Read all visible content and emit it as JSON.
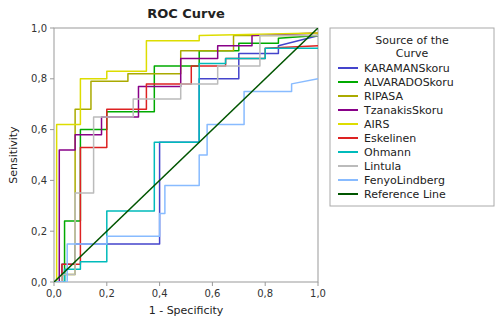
{
  "chart_data": {
    "type": "line",
    "title": "ROC Curve",
    "xlabel": "1 - Specificity",
    "ylabel": "Sensitivity",
    "legend_title": "Source of the\nCurve",
    "legend": "right",
    "grid": false,
    "xlim": [
      0.0,
      1.0
    ],
    "ylim": [
      0.0,
      1.0
    ],
    "xticks": [
      {
        "value": 0.0,
        "label": "0,0"
      },
      {
        "value": 0.2,
        "label": "0,2"
      },
      {
        "value": 0.4,
        "label": "0,4"
      },
      {
        "value": 0.6,
        "label": "0,6"
      },
      {
        "value": 0.8,
        "label": "0,8"
      },
      {
        "value": 1.0,
        "label": "1,0"
      }
    ],
    "yticks": [
      {
        "value": 0.0,
        "label": "0,0"
      },
      {
        "value": 0.2,
        "label": "0,2"
      },
      {
        "value": 0.4,
        "label": "0,4"
      },
      {
        "value": 0.6,
        "label": "0,6"
      },
      {
        "value": 0.8,
        "label": "0,8"
      },
      {
        "value": 1.0,
        "label": "1,0"
      }
    ],
    "series": [
      {
        "name": "KARAMANSkoru",
        "color": "#4444cc",
        "x": [
          0.0,
          0.03,
          0.03,
          0.08,
          0.08,
          0.4,
          0.4,
          0.55,
          0.55,
          0.7,
          0.7,
          0.85,
          0.85,
          1.0
        ],
        "values": [
          0.0,
          0.0,
          0.07,
          0.07,
          0.15,
          0.15,
          0.55,
          0.55,
          0.8,
          0.8,
          0.9,
          0.9,
          0.93,
          0.97
        ]
      },
      {
        "name": "ALVARADOSkoru",
        "color": "#00aa00",
        "x": [
          0.0,
          0.04,
          0.04,
          0.1,
          0.1,
          0.2,
          0.2,
          0.38,
          0.38,
          0.55,
          0.55,
          0.7,
          0.7,
          0.85,
          0.85,
          1.0
        ],
        "values": [
          0.0,
          0.0,
          0.24,
          0.24,
          0.6,
          0.6,
          0.67,
          0.67,
          0.85,
          0.85,
          0.91,
          0.91,
          0.94,
          0.94,
          0.96,
          0.97
        ]
      },
      {
        "name": "RIPASA",
        "color": "#aaaa00",
        "x": [
          0.0,
          0.03,
          0.03,
          0.08,
          0.08,
          0.14,
          0.14,
          0.28,
          0.28,
          0.48,
          0.48,
          0.68,
          0.68,
          1.0
        ],
        "values": [
          0.0,
          0.0,
          0.03,
          0.03,
          0.68,
          0.68,
          0.79,
          0.79,
          0.82,
          0.82,
          0.91,
          0.91,
          0.97,
          0.97
        ]
      },
      {
        "name": "TzanakisSkoru",
        "color": "#880088",
        "x": [
          0.0,
          0.02,
          0.02,
          0.08,
          0.08,
          0.18,
          0.18,
          0.32,
          0.32,
          0.48,
          0.48,
          0.62,
          0.62,
          0.75,
          0.75,
          1.0
        ],
        "values": [
          0.0,
          0.0,
          0.52,
          0.52,
          0.58,
          0.58,
          0.65,
          0.65,
          0.77,
          0.77,
          0.88,
          0.88,
          0.93,
          0.93,
          0.97,
          0.98
        ]
      },
      {
        "name": "AIRS",
        "color": "#dddd00",
        "x": [
          0.0,
          0.01,
          0.01,
          0.1,
          0.1,
          0.2,
          0.2,
          0.35,
          0.35,
          0.55,
          0.55,
          1.0
        ],
        "values": [
          0.0,
          0.0,
          0.62,
          0.62,
          0.8,
          0.8,
          0.83,
          0.83,
          0.95,
          0.95,
          0.97,
          0.98
        ]
      },
      {
        "name": "Eskelinen",
        "color": "#dd2222",
        "x": [
          0.0,
          0.03,
          0.03,
          0.1,
          0.1,
          0.2,
          0.2,
          0.35,
          0.35,
          0.52,
          0.52,
          0.65,
          0.65,
          0.8,
          0.8,
          1.0
        ],
        "values": [
          0.0,
          0.0,
          0.07,
          0.07,
          0.53,
          0.53,
          0.68,
          0.68,
          0.78,
          0.78,
          0.85,
          0.85,
          0.88,
          0.88,
          0.92,
          0.93
        ]
      },
      {
        "name": "Ohmann",
        "color": "#00bbbb",
        "x": [
          0.0,
          0.04,
          0.04,
          0.1,
          0.1,
          0.2,
          0.2,
          0.38,
          0.38,
          0.55,
          0.55,
          0.65,
          0.65,
          0.8,
          0.8,
          1.0
        ],
        "values": [
          0.0,
          0.0,
          0.05,
          0.05,
          0.08,
          0.08,
          0.28,
          0.28,
          0.55,
          0.55,
          0.86,
          0.86,
          0.88,
          0.88,
          0.92,
          0.92
        ]
      },
      {
        "name": "Lintula",
        "color": "#bbbbbb",
        "x": [
          0.0,
          0.03,
          0.03,
          0.08,
          0.08,
          0.15,
          0.15,
          0.3,
          0.3,
          0.48,
          0.48,
          0.62,
          0.62,
          0.78,
          0.78,
          1.0
        ],
        "values": [
          0.0,
          0.0,
          0.03,
          0.03,
          0.35,
          0.35,
          0.65,
          0.65,
          0.72,
          0.72,
          0.78,
          0.78,
          0.85,
          0.85,
          0.97,
          0.97
        ]
      },
      {
        "name": "FenyoLindberg",
        "color": "#88bbff",
        "x": [
          0.0,
          0.05,
          0.05,
          0.2,
          0.2,
          0.4,
          0.4,
          0.42,
          0.42,
          0.55,
          0.55,
          0.58,
          0.58,
          0.72,
          0.72,
          0.9,
          0.9,
          1.0
        ],
        "values": [
          0.0,
          0.0,
          0.15,
          0.15,
          0.18,
          0.18,
          0.27,
          0.27,
          0.38,
          0.38,
          0.5,
          0.5,
          0.62,
          0.62,
          0.75,
          0.75,
          0.78,
          0.8
        ]
      },
      {
        "name": "Reference Line",
        "color": "#005500",
        "x": [
          0.0,
          1.0
        ],
        "values": [
          0.0,
          1.0
        ]
      }
    ]
  }
}
